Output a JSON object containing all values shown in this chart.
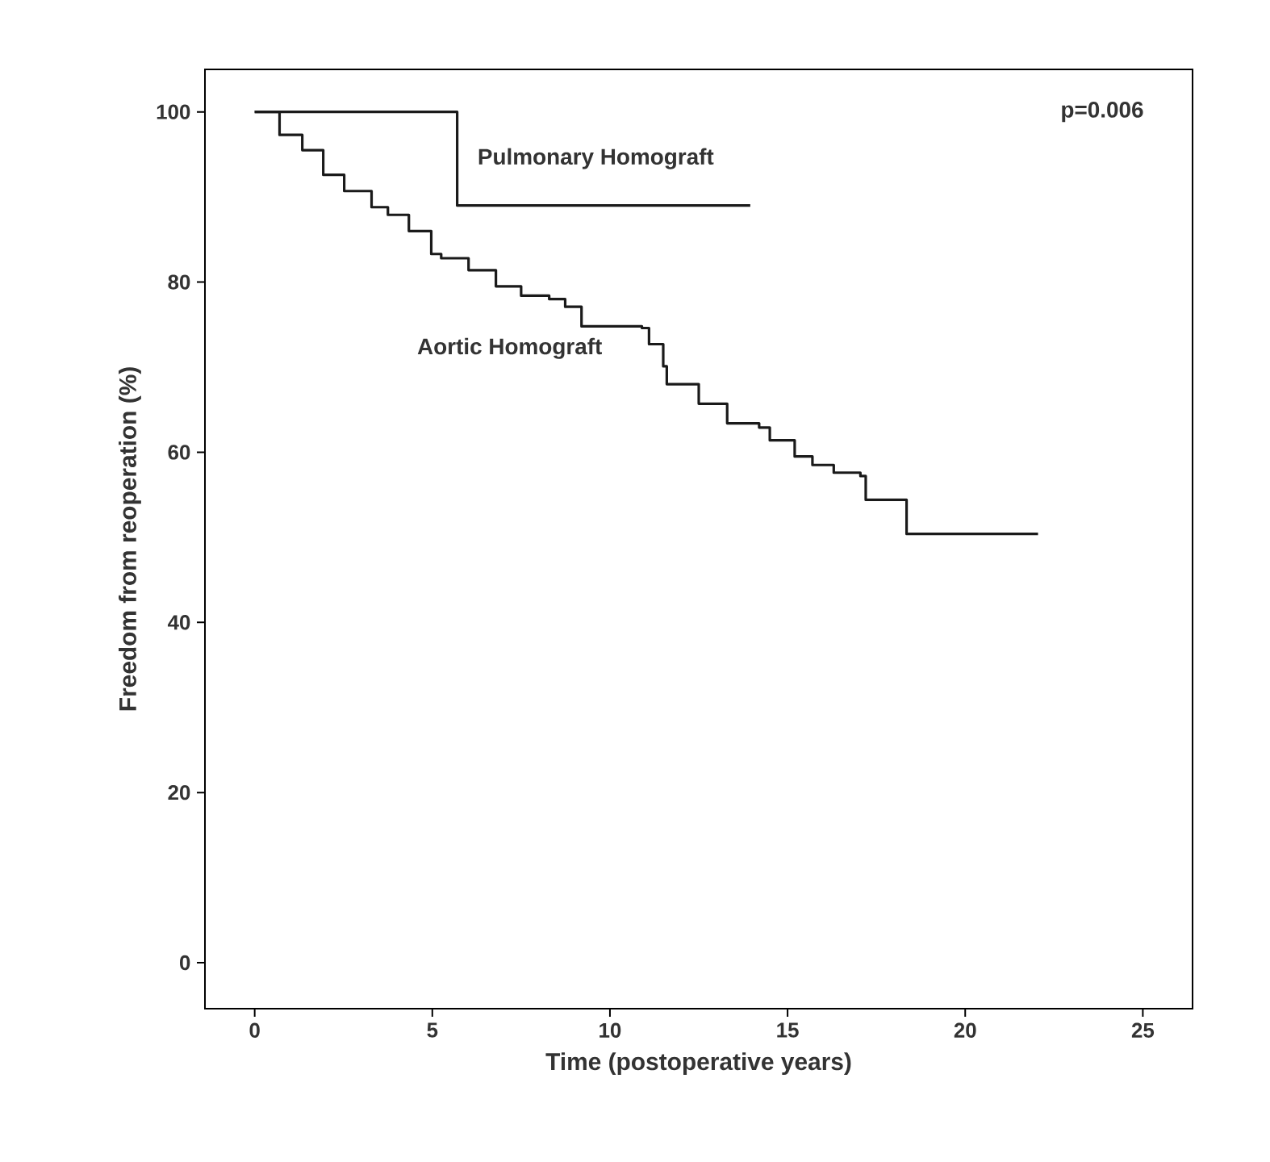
{
  "chart_data": {
    "type": "step",
    "xlabel": "Time (postoperative years)",
    "ylabel": "Freedom from reoperation (%)",
    "annotations": [
      "p=0.006"
    ],
    "xlim": [
      -1.4,
      26.4
    ],
    "ylim": [
      -5.4,
      105
    ],
    "xticks": [
      0,
      5,
      10,
      15,
      20,
      25
    ],
    "yticks": [
      0,
      20,
      40,
      60,
      80,
      100
    ],
    "grid": false,
    "marker": "none",
    "line_style": "solid",
    "series": [
      {
        "name": "Pulmonary Homograft",
        "color": "#1a1a1a",
        "x": [
          0,
          5.7,
          13.95
        ],
        "values": [
          100,
          89,
          89
        ]
      },
      {
        "name": "Aortic Homograft",
        "color": "#1a1a1a",
        "x": [
          0,
          0.7,
          1.34,
          1.93,
          2.52,
          3.29,
          3.75,
          4.34,
          4.97,
          5.25,
          6.02,
          6.79,
          7.5,
          8.29,
          8.74,
          9.2,
          10.9,
          11.1,
          11.5,
          11.6,
          12.5,
          13.3,
          14.2,
          14.5,
          15.2,
          15.7,
          16.3,
          17.05,
          17.2,
          18.35,
          22.05
        ],
        "values": [
          100,
          97.3,
          95.5,
          92.6,
          90.7,
          88.8,
          87.9,
          86,
          83.3,
          82.8,
          81.4,
          79.5,
          78.4,
          78,
          77.1,
          74.8,
          74.6,
          72.7,
          70.1,
          68,
          65.7,
          63.4,
          62.9,
          61.4,
          59.5,
          58.5,
          57.6,
          57.2,
          54.4,
          50.4,
          50.4
        ]
      }
    ]
  }
}
